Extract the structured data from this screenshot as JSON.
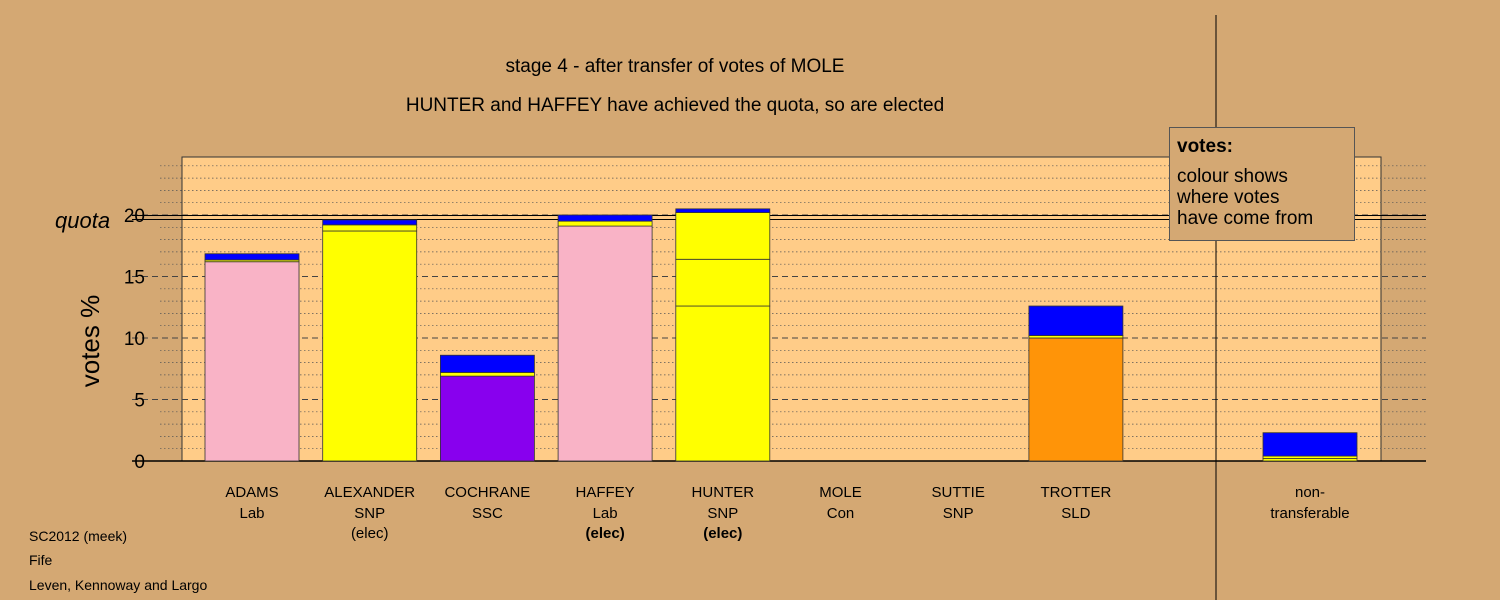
{
  "title_line1": "stage 4 - after transfer of votes of MOLE",
  "title_line2": "HUNTER and HAFFEY have achieved the quota, so are elected",
  "legend": {
    "title": "votes:",
    "lines": [
      "colour shows",
      "where votes",
      "have come from"
    ]
  },
  "footer": [
    "SC2012 (meek)",
    "Fife",
    "Leven, Kennoway and Largo"
  ],
  "chart_data": {
    "type": "bar",
    "stacked": true,
    "ylabel": "votes %",
    "ylim": [
      0,
      25
    ],
    "yticks": [
      0,
      5,
      10,
      15,
      20
    ],
    "quota": 19.8,
    "quota_label": "quota",
    "colors": {
      "pink": "#f9b3c6",
      "yellow": "#ffff00",
      "purple": "#8800ee",
      "orange": "#ff9408",
      "blue": "#0000ff",
      "plot_bg": "#ffcc88",
      "page_bg": "#d4a873"
    },
    "categories": [
      {
        "name": "ADAMS",
        "party": "Lab",
        "status": "",
        "segments": [
          {
            "color": "pink",
            "value": 16.2
          },
          {
            "color": "yellow",
            "value": 0.15
          },
          {
            "color": "blue",
            "value": 0.5
          }
        ]
      },
      {
        "name": "ALEXANDER",
        "party": "SNP",
        "status": "(elec)",
        "status_bold": false,
        "segments": [
          {
            "color": "yellow",
            "value": 18.7
          },
          {
            "color": "yellow",
            "value": 0.5
          },
          {
            "color": "blue",
            "value": 0.4
          }
        ]
      },
      {
        "name": "COCHRANE",
        "party": "SSC",
        "status": "",
        "segments": [
          {
            "color": "purple",
            "value": 6.9
          },
          {
            "color": "yellow",
            "value": 0.3
          },
          {
            "color": "blue",
            "value": 1.4
          }
        ]
      },
      {
        "name": "HAFFEY",
        "party": "Lab",
        "status": "(elec)",
        "status_bold": true,
        "segments": [
          {
            "color": "pink",
            "value": 19.1
          },
          {
            "color": "yellow",
            "value": 0.4
          },
          {
            "color": "blue",
            "value": 0.5
          }
        ]
      },
      {
        "name": "HUNTER",
        "party": "SNP",
        "status": "(elec)",
        "status_bold": true,
        "segments": [
          {
            "color": "yellow",
            "value": 12.6
          },
          {
            "color": "yellow",
            "value": 3.8
          },
          {
            "color": "yellow",
            "value": 3.8
          },
          {
            "color": "blue",
            "value": 0.3
          }
        ]
      },
      {
        "name": "MOLE",
        "party": "Con",
        "status": "",
        "segments": []
      },
      {
        "name": "SUTTIE",
        "party": "SNP",
        "status": "",
        "segments": []
      },
      {
        "name": "TROTTER",
        "party": "SLD",
        "status": "",
        "segments": [
          {
            "color": "orange",
            "value": 10.0
          },
          {
            "color": "yellow",
            "value": 0.2
          },
          {
            "color": "blue",
            "value": 2.4
          }
        ]
      }
    ],
    "nontransferable": {
      "label_line1": "non-",
      "label_line2": "transferable",
      "segments": [
        {
          "color": "yellow",
          "value": 0.2
        },
        {
          "color": "yellow",
          "value": 0.2
        },
        {
          "color": "blue",
          "value": 1.9
        }
      ]
    }
  }
}
